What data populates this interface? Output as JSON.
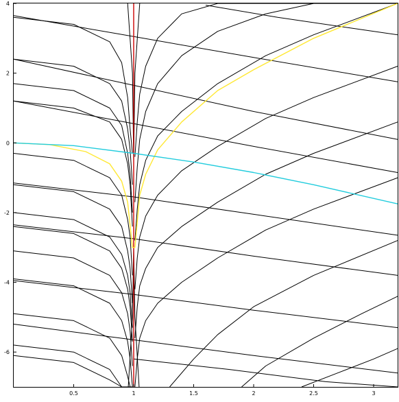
{
  "chart_data": {
    "type": "line",
    "title": "",
    "xlabel": "",
    "ylabel": "",
    "xlim": [
      0,
      3.2
    ],
    "ylim": [
      -7,
      4
    ],
    "grid": false,
    "legend": "none",
    "x_ticks": [
      {
        "value": 0.5,
        "label": "0.5"
      },
      {
        "value": 1,
        "label": "1"
      },
      {
        "value": 1.5,
        "label": "1.5"
      },
      {
        "value": 2,
        "label": "2"
      },
      {
        "value": 2.5,
        "label": "2.5"
      },
      {
        "value": 3,
        "label": "3"
      }
    ],
    "y_ticks": [
      {
        "value": 4,
        "label": "4"
      },
      {
        "value": 2,
        "label": "2"
      },
      {
        "value": 0,
        "label": "0"
      },
      {
        "value": -2,
        "label": "-2"
      },
      {
        "value": -4,
        "label": "-4"
      },
      {
        "value": -6,
        "label": "-6"
      }
    ],
    "singular_x": 1,
    "colors": {
      "frame": "#000000",
      "family": "#000000",
      "red_line": "#cc0000",
      "yellow_curve": "#ffe833",
      "cyan_curve": "#22ccdd"
    },
    "series": [
      {
        "color_key": "red_line",
        "x": [
          1,
          1
        ],
        "y": [
          -7,
          4
        ]
      },
      {
        "color_key": "yellow_curve",
        "x": [
          0,
          0.3,
          0.6,
          0.8,
          0.9,
          0.95,
          0.99,
          1.01,
          1.05,
          1.1,
          1.2,
          1.4,
          1.7,
          2.0,
          2.5,
          3.2
        ],
        "y": [
          0,
          -0.05,
          -0.25,
          -0.6,
          -1.1,
          -1.7,
          -3.0,
          -3.0,
          -1.5,
          -0.9,
          -0.2,
          0.6,
          1.5,
          2.1,
          3.0,
          4.0
        ]
      },
      {
        "color_key": "cyan_curve",
        "x": [
          0,
          0.5,
          1.0,
          1.5,
          2.0,
          2.5,
          3.2
        ],
        "y": [
          0,
          -0.08,
          -0.3,
          -0.55,
          -0.85,
          -1.2,
          -1.75
        ]
      },
      {
        "color_key": "family",
        "x": [
          0,
          0.5,
          0.8,
          0.9,
          0.95,
          0.97,
          0.99
        ],
        "y": [
          3.6,
          3.4,
          2.9,
          2.3,
          1.3,
          0.4,
          -0.3
        ]
      },
      {
        "color_key": "family",
        "x": [
          0,
          0.5,
          0.8,
          0.9,
          0.95,
          0.97,
          0.99
        ],
        "y": [
          2.4,
          2.2,
          1.7,
          1.2,
          0.4,
          -0.2,
          -1.2
        ]
      },
      {
        "color_key": "family",
        "x": [
          0,
          0.5,
          0.8,
          0.9,
          0.95,
          0.97,
          0.99
        ],
        "y": [
          1.7,
          1.5,
          1.0,
          0.5,
          -0.3,
          -0.9,
          -2.0
        ]
      },
      {
        "color_key": "family",
        "x": [
          0,
          0.5,
          0.8,
          0.9,
          0.95,
          0.97,
          0.99
        ],
        "y": [
          1.2,
          1.0,
          0.6,
          0.1,
          -0.6,
          -1.2,
          -2.4
        ]
      },
      {
        "color_key": "family",
        "x": [
          0,
          0.5,
          0.8,
          0.9,
          0.95,
          0.97,
          0.99
        ],
        "y": [
          -0.3,
          -0.5,
          -1.0,
          -1.5,
          -2.2,
          -2.7,
          -3.8
        ]
      },
      {
        "color_key": "family",
        "x": [
          0,
          0.5,
          0.8,
          0.9,
          0.95,
          0.97,
          0.99
        ],
        "y": [
          -1.2,
          -1.4,
          -1.9,
          -2.4,
          -3.1,
          -3.6,
          -4.6
        ]
      },
      {
        "color_key": "family",
        "x": [
          0,
          0.5,
          0.8,
          0.9,
          0.95,
          0.97,
          0.99
        ],
        "y": [
          -2.0,
          -2.2,
          -2.7,
          -3.2,
          -3.8,
          -4.3,
          -5.3
        ]
      },
      {
        "color_key": "family",
        "x": [
          0,
          0.5,
          0.8,
          0.9,
          0.95,
          0.97,
          0.99
        ],
        "y": [
          -2.4,
          -2.6,
          -3.1,
          -3.6,
          -4.2,
          -4.7,
          -5.7
        ]
      },
      {
        "color_key": "family",
        "x": [
          0,
          0.5,
          0.8,
          0.9,
          0.95,
          0.97,
          0.99
        ],
        "y": [
          -3.1,
          -3.3,
          -3.8,
          -4.3,
          -4.9,
          -5.4,
          -6.4
        ]
      },
      {
        "color_key": "family",
        "x": [
          0,
          0.5,
          0.8,
          0.9,
          0.95,
          0.97,
          0.99
        ],
        "y": [
          -3.9,
          -4.1,
          -4.6,
          -5.1,
          -5.7,
          -6.2,
          -7.0
        ]
      },
      {
        "color_key": "family",
        "x": [
          0,
          0.5,
          0.8,
          0.9,
          0.95,
          0.97,
          0.99
        ],
        "y": [
          -4.9,
          -5.1,
          -5.6,
          -6.1,
          -6.7,
          -7.0,
          -7.0
        ]
      },
      {
        "color_key": "family",
        "x": [
          0,
          0.5,
          0.8,
          0.9,
          0.95,
          0.97,
          0.99
        ],
        "y": [
          -5.8,
          -6.0,
          -6.5,
          -7.0,
          -7.0,
          -7.0,
          -7.0
        ]
      },
      {
        "color_key": "family",
        "x": [
          0,
          0.5,
          0.8,
          0.9,
          0.95,
          0.97,
          0.99
        ],
        "y": [
          -6.1,
          -6.3,
          -6.8,
          -7.0,
          -7.0,
          -7.0,
          -7.0
        ]
      },
      {
        "color_key": "family",
        "x": [
          1.01,
          1.03,
          1.05,
          1.1,
          1.2,
          1.4,
          1.7,
          2.1,
          2.5,
          3.2
        ],
        "y": [
          -0.4,
          0.6,
          1.4,
          2.2,
          3.0,
          3.7,
          4.0,
          4.0,
          4.0,
          4.0
        ]
      },
      {
        "color_key": "family",
        "x": [
          1.01,
          1.03,
          1.05,
          1.1,
          1.2,
          1.4,
          1.7,
          2.1,
          2.5,
          3.2
        ],
        "y": [
          -1.7,
          -0.7,
          0.1,
          0.9,
          1.7,
          2.5,
          3.2,
          3.7,
          4.0,
          4.0
        ]
      },
      {
        "color_key": "family",
        "x": [
          1.01,
          1.03,
          1.05,
          1.1,
          1.2,
          1.4,
          1.7,
          2.1,
          2.5,
          3.2
        ],
        "y": [
          -2.8,
          -1.9,
          -1.2,
          -0.5,
          0.2,
          0.9,
          1.7,
          2.5,
          3.1,
          4.0
        ]
      },
      {
        "color_key": "family",
        "x": [
          1.01,
          1.03,
          1.05,
          1.1,
          1.2,
          1.4,
          1.7,
          2.1,
          2.5,
          3.2
        ],
        "y": [
          -4.2,
          -3.3,
          -2.7,
          -2.1,
          -1.5,
          -0.8,
          -0.1,
          0.7,
          1.3,
          2.2
        ]
      },
      {
        "color_key": "family",
        "x": [
          1.01,
          1.03,
          1.05,
          1.1,
          1.2,
          1.4,
          1.7,
          2.1,
          2.5,
          3.2
        ],
        "y": [
          -5.6,
          -4.7,
          -4.1,
          -3.6,
          -3.0,
          -2.4,
          -1.7,
          -0.9,
          -0.3,
          0.6
        ]
      },
      {
        "color_key": "family",
        "x": [
          1.01,
          1.03,
          1.05,
          1.1,
          1.2,
          1.4,
          1.7,
          2.1,
          2.5,
          3.2
        ],
        "y": [
          -7.0,
          -6.2,
          -5.6,
          -5.1,
          -4.6,
          -4.0,
          -3.3,
          -2.5,
          -1.9,
          -1.0
        ]
      },
      {
        "color_key": "family",
        "x": [
          1.3,
          1.5,
          1.7,
          2.0,
          2.5,
          3.2
        ],
        "y": [
          -7.0,
          -6.2,
          -5.5,
          -4.7,
          -3.8,
          -2.8
        ]
      },
      {
        "color_key": "family",
        "x": [
          1.9,
          2.1,
          2.5,
          2.9,
          3.2
        ],
        "y": [
          -7.0,
          -6.4,
          -5.6,
          -4.9,
          -4.4
        ]
      },
      {
        "color_key": "family",
        "x": [
          2.4,
          2.7,
          3.0,
          3.2
        ],
        "y": [
          -7.0,
          -6.6,
          -6.2,
          -5.9
        ]
      },
      {
        "color_key": "family",
        "x": [
          0.95,
          0.99,
          1.0,
          1.01,
          1.05
        ],
        "y": [
          4.0,
          2.0,
          -0.5,
          2.0,
          4.0
        ]
      },
      {
        "color_key": "family",
        "x": [
          0.955,
          0.99,
          1.0,
          1.01,
          1.045
        ],
        "y": [
          -7.0,
          -5.0,
          -3.0,
          -5.0,
          -7.0
        ]
      },
      {
        "color_key": "family",
        "x": [
          0,
          1.0,
          2.0,
          3.2
        ],
        "y": [
          3.65,
          3.05,
          2.45,
          1.75
        ]
      },
      {
        "color_key": "family",
        "x": [
          0,
          1.0,
          2.0,
          3.2
        ],
        "y": [
          2.4,
          1.65,
          0.9,
          0.1
        ]
      },
      {
        "color_key": "family",
        "x": [
          0,
          1.0,
          2.0,
          3.2
        ],
        "y": [
          1.2,
          0.55,
          -0.1,
          -0.85
        ]
      },
      {
        "color_key": "family",
        "x": [
          0,
          1.0,
          2.0,
          3.2
        ],
        "y": [
          -1.15,
          -1.55,
          -2.05,
          -2.65
        ]
      },
      {
        "color_key": "family",
        "x": [
          0,
          1.0,
          2.0,
          3.2
        ],
        "y": [
          -2.35,
          -2.75,
          -3.25,
          -3.8
        ]
      },
      {
        "color_key": "family",
        "x": [
          0,
          1.0,
          2.0,
          3.2
        ],
        "y": [
          -3.95,
          -4.35,
          -4.8,
          -5.3
        ]
      },
      {
        "color_key": "family",
        "x": [
          0,
          1.0,
          2.0,
          3.2
        ],
        "y": [
          -5.2,
          -5.65,
          -6.1,
          -6.6
        ]
      },
      {
        "color_key": "family",
        "x": [
          1.6,
          2.2,
          2.8,
          3.2
        ],
        "y": [
          3.95,
          3.6,
          3.3,
          3.1
        ]
      },
      {
        "color_key": "family",
        "x": [
          1.0,
          1.8,
          2.6,
          3.2
        ],
        "y": [
          -6.2,
          -6.5,
          -6.85,
          -7.0
        ]
      }
    ]
  }
}
